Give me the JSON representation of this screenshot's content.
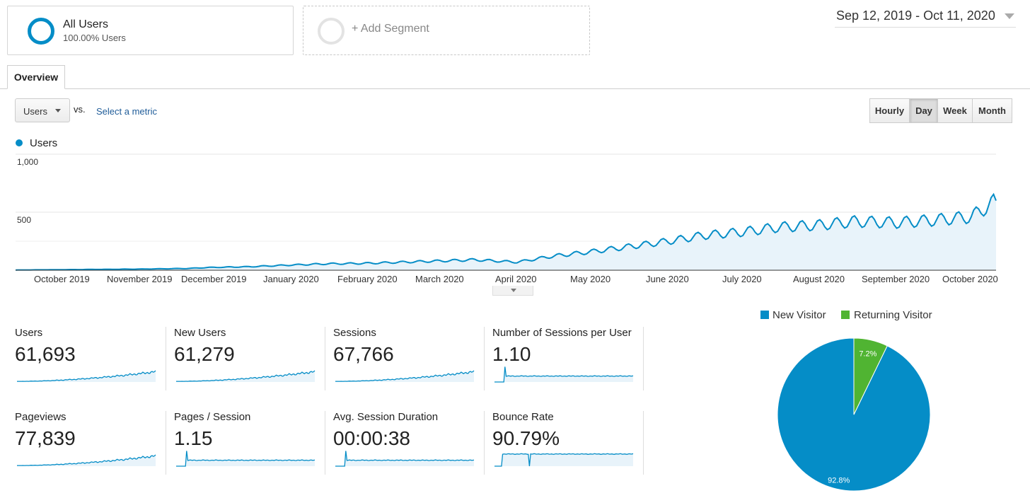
{
  "segments": {
    "all_users": {
      "title": "All Users",
      "subtitle": "100.00% Users"
    },
    "add_segment": {
      "label": "+ Add Segment"
    }
  },
  "date_range": "Sep 12, 2019 - Oct 11, 2020",
  "tabs": {
    "overview": "Overview"
  },
  "metric_select": {
    "value": "Users",
    "vs": "vs.",
    "select_metric": "Select a metric"
  },
  "granularity": {
    "options": [
      "Hourly",
      "Day",
      "Week",
      "Month"
    ],
    "selected": "Day"
  },
  "colors": {
    "primary": "#058dc7",
    "returning": "#50b432",
    "area_fill": "#e8f3fa"
  },
  "chart_data": [
    {
      "type": "area",
      "legend": [
        "Users"
      ],
      "y_ticks": [
        "1,000",
        "500"
      ],
      "ylim": [
        0,
        1000
      ],
      "x_tick_labels": [
        "October 2019",
        "November 2019",
        "December 2019",
        "January 2020",
        "February 2020",
        "March 2020",
        "April 2020",
        "May 2020",
        "June 2020",
        "July 2020",
        "August 2020",
        "September 2020",
        "October 2020"
      ],
      "series": [
        {
          "name": "Users",
          "x": [
            "2019-09-12",
            "2019-10-01",
            "2019-11-01",
            "2019-11-20",
            "2019-12-01",
            "2019-12-15",
            "2020-01-01",
            "2020-01-15",
            "2020-02-01",
            "2020-02-15",
            "2020-03-01",
            "2020-03-15",
            "2020-04-01",
            "2020-04-15",
            "2020-05-01",
            "2020-05-15",
            "2020-06-01",
            "2020-06-15",
            "2020-07-01",
            "2020-07-15",
            "2020-08-01",
            "2020-08-15",
            "2020-09-01",
            "2020-09-15",
            "2020-10-01",
            "2020-10-11"
          ],
          "values": [
            2,
            5,
            10,
            15,
            25,
            30,
            45,
            55,
            60,
            70,
            80,
            90,
            70,
            120,
            160,
            200,
            250,
            300,
            330,
            370,
            390,
            420,
            410,
            430,
            460,
            600
          ]
        }
      ]
    },
    {
      "type": "pie",
      "legend": [
        "New Visitor",
        "Returning Visitor"
      ],
      "slices": [
        {
          "name": "New Visitor",
          "value": 92.8,
          "label": "92.8%"
        },
        {
          "name": "Returning Visitor",
          "value": 7.2,
          "label": "7.2%"
        }
      ]
    }
  ],
  "kpis": [
    {
      "label": "Users",
      "value": "61,693",
      "spark": "rising"
    },
    {
      "label": "New Users",
      "value": "61,279",
      "spark": "rising"
    },
    {
      "label": "Sessions",
      "value": "67,766",
      "spark": "rising"
    },
    {
      "label": "Number of Sessions per User",
      "value": "1.10",
      "spark": "flat-spike"
    },
    {
      "label": "Pageviews",
      "value": "77,839",
      "spark": "rising"
    },
    {
      "label": "Pages / Session",
      "value": "1.15",
      "spark": "flat-spike"
    },
    {
      "label": "Avg. Session Duration",
      "value": "00:00:38",
      "spark": "flat-spike"
    },
    {
      "label": "Bounce Rate",
      "value": "90.79%",
      "spark": "high-flat"
    }
  ]
}
